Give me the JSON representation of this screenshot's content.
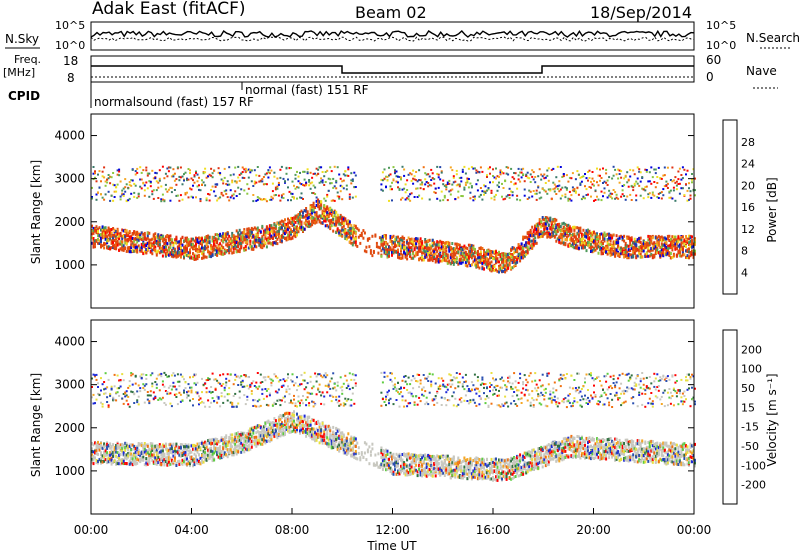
{
  "header": {
    "station": "Adak East (fitACF)",
    "beam": "Beam 02",
    "date": "18/Sep/2014"
  },
  "colors": {
    "power": [
      "#0000dd",
      "#2244aa",
      "#3a7a6a",
      "#4f9a5a",
      "#8cc840",
      "#f0e020",
      "#f5a623",
      "#f07010",
      "#e03010",
      "#ff0000"
    ],
    "velocity": [
      "#1c28d8",
      "#2a4fb0",
      "#2f7040",
      "#5dcc40",
      "#c8c8c0",
      "#c8c8c0",
      "#e8e040",
      "#f5a623",
      "#f07010",
      "#ff0000"
    ],
    "power_dominant": "#e04a10",
    "velocity_dominant": "#c8c8c0"
  },
  "top_panels": {
    "nsky_label": "N.Sky",
    "nsearch_label": "N.Search",
    "count_top": "10^5",
    "count_bottom": "10^0",
    "freq_label": "Freq.",
    "freq_unit": "[MHz]",
    "freq_ticks": [
      "18",
      "8"
    ],
    "nave_label": "Nave",
    "nave_ticks": [
      "60",
      "0"
    ],
    "cpid_label": "CPID",
    "cpid_entries": [
      "normalsound (fast) 157 RF",
      "normal (fast) 151 RF"
    ]
  },
  "chart_data": [
    {
      "type": "heatmap",
      "title": "",
      "ylabel": "Slant Range [km]",
      "xlabel": "",
      "xlim": [
        "00:00",
        "00:00"
      ],
      "ylim": [
        0,
        4500
      ],
      "yticks": [
        "1000",
        "2000",
        "3000",
        "4000"
      ],
      "colorbar_label": "Power [dB]",
      "colorbar_ticks": [
        "4",
        "8",
        "12",
        "16",
        "20",
        "24",
        "28"
      ],
      "bands": [
        {
          "t": 0,
          "y": 1700
        },
        {
          "t": 2,
          "y": 1550
        },
        {
          "t": 4,
          "y": 1400
        },
        {
          "t": 6,
          "y": 1600
        },
        {
          "t": 7,
          "y": 1700
        },
        {
          "t": 8,
          "y": 1900
        },
        {
          "t": 9,
          "y": 2300
        },
        {
          "t": 11,
          "y": 1500
        },
        {
          "t": 13,
          "y": 1400
        },
        {
          "t": 15,
          "y": 1250
        },
        {
          "t": 16.5,
          "y": 1050
        },
        {
          "t": 18,
          "y": 1950
        },
        {
          "t": 19,
          "y": 1700
        },
        {
          "t": 21,
          "y": 1450
        },
        {
          "t": 24,
          "y": 1450
        }
      ]
    },
    {
      "type": "heatmap",
      "title": "",
      "ylabel": "Slant Range [km]",
      "xlabel": "Time UT",
      "xlim": [
        "00:00",
        "00:00"
      ],
      "ylim": [
        0,
        4500
      ],
      "yticks": [
        "1000",
        "2000",
        "3000",
        "4000"
      ],
      "xticks": [
        "00:00",
        "04:00",
        "08:00",
        "12:00",
        "16:00",
        "20:00",
        "00:00"
      ],
      "colorbar_label": "Velocity [m s⁻¹]",
      "colorbar_ticks": [
        "200",
        "100",
        "50",
        "15",
        "-15",
        "-50",
        "-100",
        "-200"
      ],
      "bands": [
        {
          "t": 0,
          "y": 1450
        },
        {
          "t": 4,
          "y": 1400
        },
        {
          "t": 6,
          "y": 1700
        },
        {
          "t": 8,
          "y": 2200
        },
        {
          "t": 12,
          "y": 1200
        },
        {
          "t": 16.5,
          "y": 1050
        },
        {
          "t": 19,
          "y": 1600
        },
        {
          "t": 24,
          "y": 1400
        }
      ]
    }
  ]
}
